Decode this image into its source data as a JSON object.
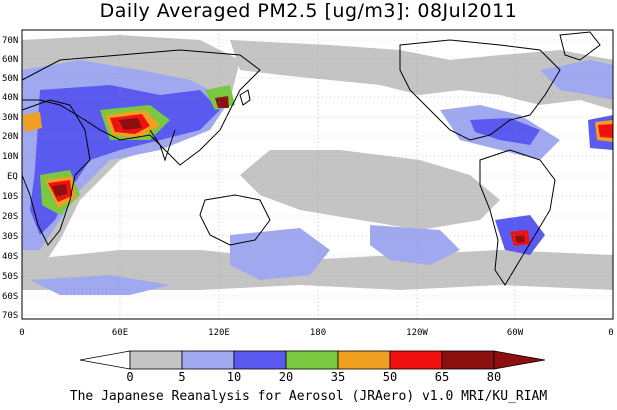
{
  "title": "Daily Averaged PM2.5 [ug/m3]: 08Jul2011",
  "footer": "The Japanese Reanalysis for Aerosol (JRAero) v1.0 MRI/KU_RIAM",
  "lat_labels": [
    "70N",
    "60N",
    "50N",
    "40N",
    "30N",
    "20N",
    "10N",
    "EQ",
    "10S",
    "20S",
    "30S",
    "40S",
    "50S",
    "60S",
    "70S"
  ],
  "lon_labels": [
    "0",
    "60E",
    "120E",
    "180",
    "120W",
    "60W",
    "0"
  ],
  "colorbar": {
    "ticks": [
      "0",
      "5",
      "10",
      "20",
      "35",
      "50",
      "65",
      "80"
    ],
    "colors": [
      "#ffffff",
      "#c4c4c4",
      "#a0a8f0",
      "#5a5af0",
      "#7ac840",
      "#f0a020",
      "#f01010",
      "#8c1010"
    ]
  },
  "map_colors": {
    "ocean": "#ffffff",
    "coast": "#000000",
    "grid": "#999999"
  }
}
